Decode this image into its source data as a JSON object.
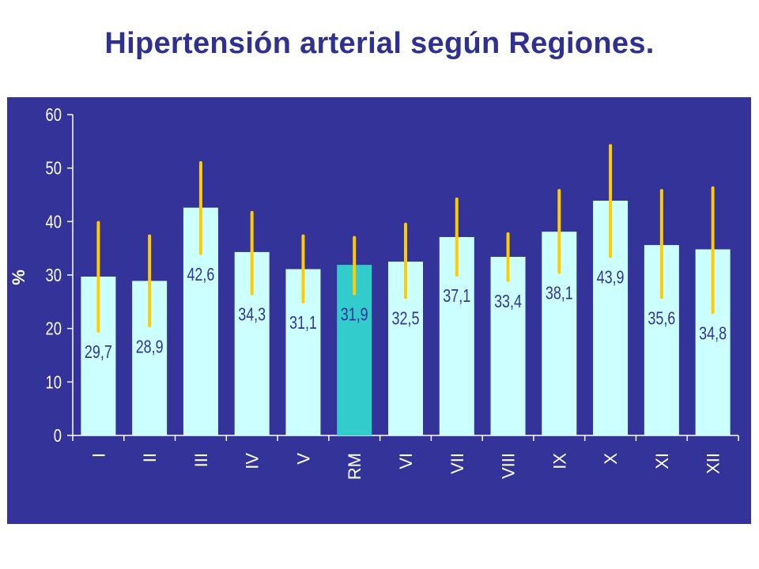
{
  "title": "Hipertensión arterial según Regiones.",
  "colors": {
    "background": "#333399",
    "bar": "#ccffff",
    "bar_highlight": "#33cccc",
    "error_bar": "#ffcc00",
    "axis": "#ffffff",
    "title": "#2e3192",
    "data_label": "#333399"
  },
  "chart_data": {
    "type": "bar",
    "title": "",
    "xlabel": "",
    "ylabel": "%",
    "ylim": [
      0,
      60
    ],
    "yticks": [
      "0",
      "10",
      "20",
      "30",
      "40",
      "50",
      "60"
    ],
    "categories": [
      "I",
      "II",
      "III",
      "IV",
      "V",
      "RM",
      "VI",
      "VII",
      "VIII",
      "IX",
      "X",
      "XI",
      "XII"
    ],
    "values": [
      29.7,
      28.9,
      42.6,
      34.3,
      31.1,
      31.9,
      32.5,
      37.1,
      33.4,
      38.1,
      43.9,
      35.6,
      34.8
    ],
    "value_labels": [
      "29,7",
      "28,9",
      "42,6",
      "34,3",
      "31,1",
      "31,9",
      "32,5",
      "37,1",
      "33,4",
      "38,1",
      "43,9",
      "35,6",
      "34,8"
    ],
    "error_low": [
      19.5,
      20.5,
      34,
      26.5,
      25,
      26.5,
      25.8,
      30,
      29,
      30.5,
      33.5,
      25.8,
      23
    ],
    "error_high": [
      39.8,
      37.3,
      51,
      41.7,
      37.3,
      37,
      39.5,
      44.2,
      37.7,
      45.8,
      54.2,
      45.8,
      46.3
    ],
    "highlight": "RM",
    "grid": false,
    "legend": "none"
  }
}
